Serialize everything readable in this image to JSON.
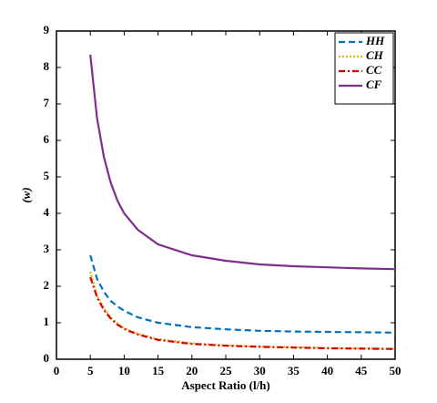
{
  "chart_data": {
    "type": "line",
    "x_label": "Aspect Ratio (l/h)",
    "y_label": "(w)",
    "x": [
      5,
      6,
      7,
      8,
      9,
      10,
      12,
      15,
      20,
      25,
      30,
      35,
      40,
      45,
      50
    ],
    "series": [
      {
        "name": "HH",
        "color": "#0072bd",
        "dash": "7,4",
        "values": [
          2.85,
          2.2,
          1.85,
          1.6,
          1.45,
          1.33,
          1.15,
          1.0,
          0.88,
          0.82,
          0.78,
          0.76,
          0.75,
          0.74,
          0.73
        ]
      },
      {
        "name": "CH",
        "color": "#edb120",
        "dash": "2,2",
        "values": [
          2.4,
          1.75,
          1.4,
          1.15,
          0.98,
          0.85,
          0.7,
          0.55,
          0.44,
          0.38,
          0.35,
          0.33,
          0.31,
          0.3,
          0.29
        ]
      },
      {
        "name": "CC",
        "color": "#d60000",
        "dash": "7,3,2,3",
        "values": [
          2.25,
          1.7,
          1.35,
          1.12,
          0.95,
          0.83,
          0.68,
          0.53,
          0.42,
          0.37,
          0.34,
          0.32,
          0.3,
          0.29,
          0.28
        ]
      },
      {
        "name": "CF",
        "color": "#7e2f8e",
        "dash": "none",
        "values": [
          8.35,
          6.6,
          5.55,
          4.85,
          4.35,
          4.0,
          3.55,
          3.15,
          2.85,
          2.7,
          2.6,
          2.55,
          2.52,
          2.49,
          2.47
        ]
      }
    ],
    "xlim": [
      0,
      50
    ],
    "ylim": [
      0,
      9
    ],
    "xticks": [
      0,
      5,
      10,
      15,
      20,
      25,
      30,
      35,
      40,
      45,
      50
    ],
    "yticks": [
      0,
      1,
      2,
      3,
      4,
      5,
      6,
      7,
      8,
      9
    ],
    "legend": "top-right"
  }
}
